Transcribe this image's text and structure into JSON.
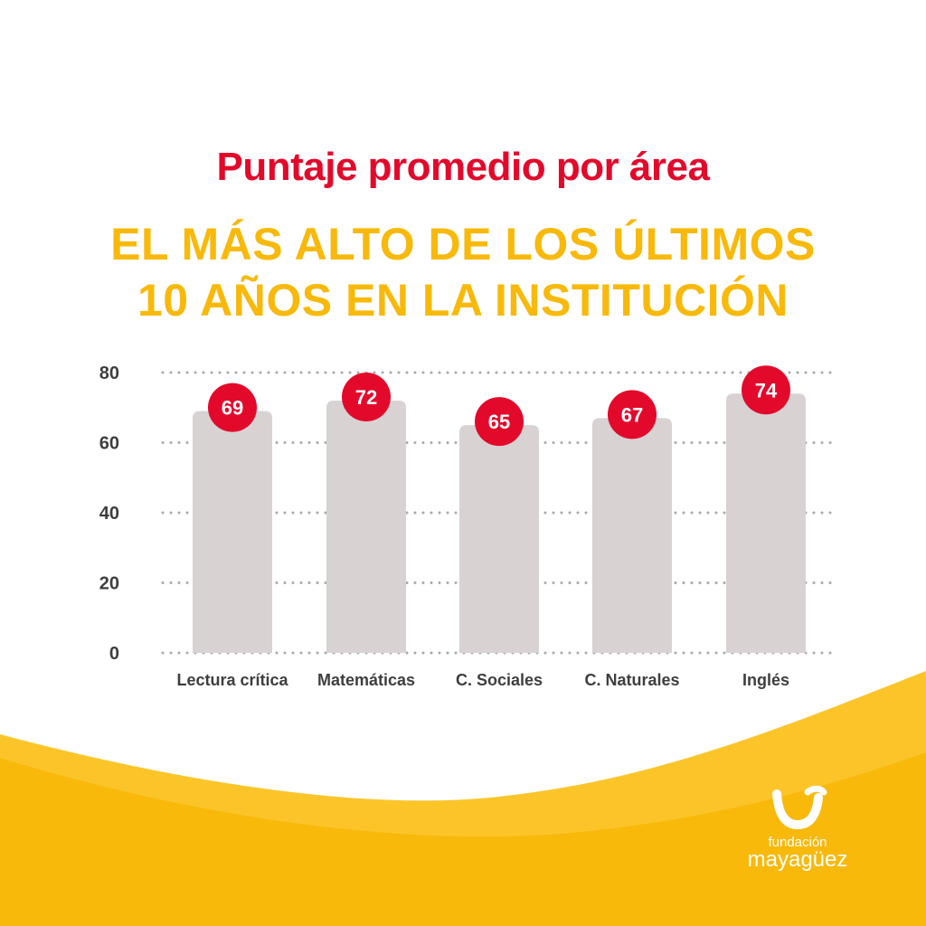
{
  "title": "Puntaje promedio por área",
  "headline": {
    "line1": "EL MÁS ALTO DE LOS ÚLTIMOS",
    "line2": "10 AÑOS EN LA INSTITUCIÓN"
  },
  "colors": {
    "title": "#e3092b",
    "headline": "#f8b90b",
    "bar": "#d8d2d3",
    "badge": "#e3092b",
    "wave": "#f8b90b",
    "grid": "#a9a9a9"
  },
  "chart_data": {
    "type": "bar",
    "categories": [
      "Lectura crítica",
      "Matemáticas",
      "C. Sociales",
      "C. Naturales",
      "Inglés"
    ],
    "values": [
      69,
      72,
      65,
      67,
      74
    ],
    "ylim": [
      0,
      80
    ],
    "yticks": [
      0,
      20,
      40,
      60,
      80
    ],
    "grid": true,
    "grid_style": "dotted",
    "title": "",
    "xlabel": "",
    "ylabel": ""
  },
  "logo": {
    "icon": "smile-u-icon",
    "line1": "fundación",
    "line2": "mayagüez"
  }
}
